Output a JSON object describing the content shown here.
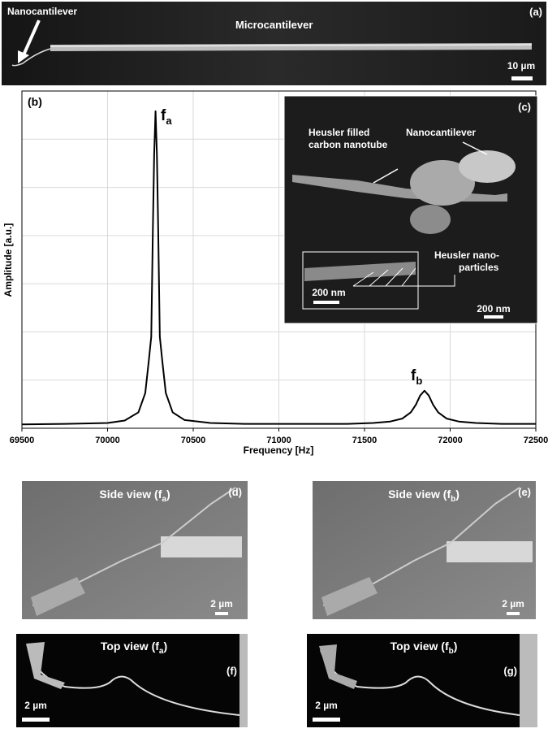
{
  "chart_data": {
    "type": "line",
    "x_label": "Frequency [Hz]",
    "y_label": "Amplitude [a.u.]",
    "x": [
      69500,
      69750,
      70000,
      70100,
      70180,
      70220,
      70240,
      70255,
      70265,
      70272,
      70280,
      70288,
      70295,
      70305,
      70320,
      70340,
      70380,
      70450,
      70600,
      70800,
      71000,
      71200,
      71400,
      71550,
      71650,
      71720,
      71770,
      71800,
      71825,
      71850,
      71875,
      71900,
      71930,
      71980,
      72050,
      72150,
      72300,
      72500
    ],
    "values": [
      0.08,
      0.09,
      0.11,
      0.16,
      0.33,
      0.73,
      1.38,
      1.9,
      4.24,
      5.68,
      6.58,
      5.68,
      4.24,
      1.9,
      1.38,
      0.73,
      0.33,
      0.17,
      0.11,
      0.09,
      0.09,
      0.09,
      0.09,
      0.11,
      0.14,
      0.2,
      0.33,
      0.49,
      0.68,
      0.78,
      0.68,
      0.49,
      0.33,
      0.2,
      0.14,
      0.11,
      0.09,
      0.09
    ],
    "color": "#000000",
    "xlim": [
      69500,
      72500
    ],
    "xticks": [
      69500,
      70000,
      70500,
      71000,
      71500,
      72000,
      72500
    ],
    "ylim": [
      0,
      7
    ],
    "yticks": [
      1,
      2,
      3,
      4,
      5,
      6
    ],
    "show_ytick_labels": false,
    "grid": true,
    "panel_label": "(b)",
    "annotations": [
      {
        "text": "f",
        "sub": "a"
      },
      {
        "text": "f",
        "sub": "b"
      }
    ]
  },
  "panels": {
    "a": {
      "label": "(a)",
      "nano": "Nanocantilever",
      "micro": "Microcantilever",
      "scale": "10 µm"
    },
    "c": {
      "label": "(c)",
      "filled": [
        "Heusler filled",
        "carbon nanotube"
      ],
      "nano": "Nanocantilever",
      "particles": [
        "Heusler nano-",
        "particles"
      ],
      "inset_scale": "200 nm",
      "scale": "200 nm"
    },
    "d": {
      "label": "(d)",
      "title": [
        "Side view (f",
        "a",
        ")"
      ],
      "scale": "2 µm"
    },
    "e": {
      "label": "(e)",
      "title": [
        "Side view (f",
        "b",
        ")"
      ],
      "scale": "2 µm"
    },
    "f": {
      "label": "(f)",
      "title": [
        "Top view (f",
        "a",
        ")"
      ],
      "scale": "2 µm"
    },
    "g": {
      "label": "(g)",
      "title": [
        "Top view (f",
        "b",
        ")"
      ],
      "scale": "2 µm"
    }
  }
}
